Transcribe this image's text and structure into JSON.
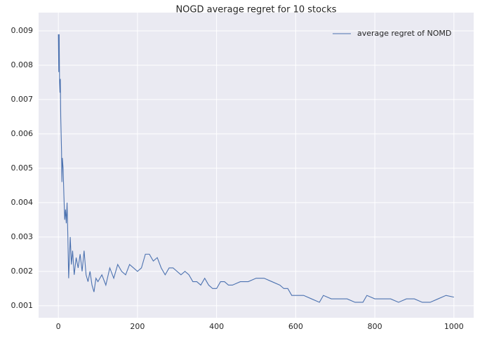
{
  "chart_data": {
    "type": "line",
    "title": "NOGD average regret for 10 stocks",
    "x": [
      0,
      1,
      2,
      3,
      4,
      5,
      6,
      8,
      9,
      10,
      12,
      14,
      16,
      18,
      20,
      22,
      24,
      26,
      28,
      30,
      33,
      36,
      40,
      45,
      50,
      55,
      60,
      65,
      70,
      75,
      80,
      85,
      90,
      95,
      100,
      110,
      120,
      130,
      140,
      150,
      160,
      170,
      180,
      190,
      200,
      210,
      220,
      230,
      240,
      250,
      260,
      270,
      280,
      290,
      300,
      310,
      320,
      330,
      340,
      350,
      360,
      370,
      380,
      390,
      400,
      410,
      420,
      430,
      440,
      460,
      480,
      500,
      520,
      540,
      560,
      570,
      580,
      590,
      600,
      620,
      640,
      660,
      670,
      690,
      710,
      730,
      750,
      770,
      780,
      800,
      820,
      840,
      860,
      880,
      900,
      920,
      940,
      960,
      980,
      1000
    ],
    "series": [
      {
        "name": "average regret of NOMD",
        "color": "#4c72b0",
        "values": [
          0.0089,
          0.0078,
          0.0089,
          0.0075,
          0.0072,
          0.0076,
          0.0065,
          0.0055,
          0.0046,
          0.0053,
          0.005,
          0.0042,
          0.0035,
          0.0038,
          0.0034,
          0.004,
          0.003,
          0.0018,
          0.0024,
          0.003,
          0.0022,
          0.0026,
          0.0019,
          0.0024,
          0.0021,
          0.0025,
          0.002,
          0.0026,
          0.0019,
          0.0017,
          0.002,
          0.0016,
          0.0014,
          0.0018,
          0.0017,
          0.0019,
          0.0016,
          0.0021,
          0.0018,
          0.0022,
          0.002,
          0.0019,
          0.0022,
          0.0021,
          0.002,
          0.0021,
          0.0025,
          0.0025,
          0.0023,
          0.0024,
          0.0021,
          0.0019,
          0.0021,
          0.0021,
          0.002,
          0.0019,
          0.002,
          0.0019,
          0.0017,
          0.0017,
          0.0016,
          0.0018,
          0.0016,
          0.0015,
          0.0015,
          0.0017,
          0.0017,
          0.0016,
          0.0016,
          0.0017,
          0.0017,
          0.0018,
          0.0018,
          0.0017,
          0.0016,
          0.0015,
          0.0015,
          0.0013,
          0.0013,
          0.0013,
          0.0012,
          0.0011,
          0.0013,
          0.0012,
          0.0012,
          0.0012,
          0.0011,
          0.0011,
          0.0013,
          0.0012,
          0.0012,
          0.0012,
          0.0011,
          0.0012,
          0.0012,
          0.0011,
          0.0011,
          0.0012,
          0.0013,
          0.00125
        ]
      }
    ],
    "xlim": [
      -50,
      1050
    ],
    "ylim": [
      0.00065,
      0.00953
    ],
    "xticks": [
      0,
      200,
      400,
      600,
      800,
      1000
    ],
    "yticks": [
      0.001,
      0.002,
      0.003,
      0.004,
      0.005,
      0.006,
      0.007,
      0.008,
      0.009
    ],
    "grid": true,
    "legend": "upper right"
  }
}
